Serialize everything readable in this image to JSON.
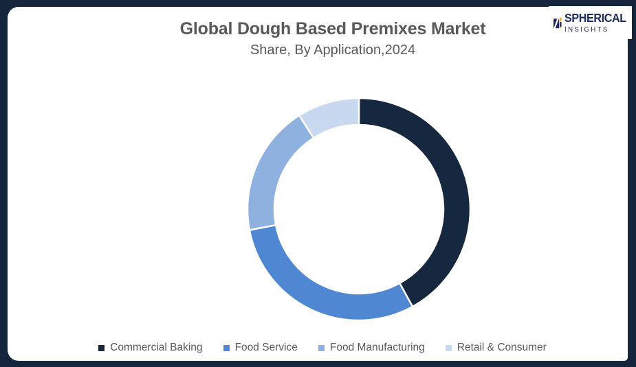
{
  "header": {
    "title": "Global Dough Based Premixes Market",
    "subtitle": "Share, By Application,2024"
  },
  "logo": {
    "line1": "SPHERICAL",
    "line2": "INSIGHTS",
    "navy": "#1e2a5a",
    "orange": "#efa31d"
  },
  "frame": {
    "border_color": "#15253c",
    "card_background": "#ffffff"
  },
  "chart_data": {
    "type": "pie",
    "donut": true,
    "title": "Global Dough Based Premixes Market Share, By Application, 2024",
    "start_angle_deg": 0,
    "direction": "clockwise",
    "categories": [
      "Commercial Baking",
      "Food Service",
      "Food Manufacturing",
      "Retail & Consumer"
    ],
    "values_pct": [
      42,
      30,
      19,
      9
    ],
    "colors": [
      "#16283f",
      "#4f87d2",
      "#8fb1e0",
      "#c7d8ef"
    ],
    "outer_radius_px": 162,
    "inner_radius_px": 123,
    "gap_color": "#ffffff",
    "legend_position": "bottom"
  }
}
